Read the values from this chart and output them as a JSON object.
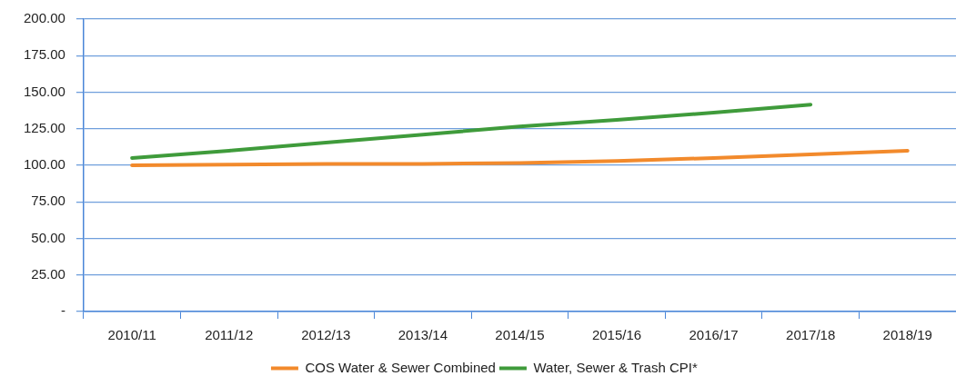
{
  "chart_data": {
    "type": "line",
    "categories": [
      "2010/11",
      "2011/12",
      "2012/13",
      "2013/14",
      "2014/15",
      "2015/16",
      "2016/17",
      "2017/18",
      "2018/19"
    ],
    "series": [
      {
        "name": "COS Water & Sewer Combined",
        "color": "#f28a2c",
        "values": [
          100,
          100.5,
          101,
          101,
          101.5,
          103,
          105,
          107.5,
          110
        ]
      },
      {
        "name": "Water, Sewer & Trash CPI*",
        "color": "#3f9b3b",
        "values": [
          105,
          110,
          115.5,
          121,
          126.5,
          131,
          136,
          141.5,
          null
        ]
      }
    ],
    "ylim": [
      0,
      200
    ],
    "yticks": [
      {
        "value": 0,
        "label": "-"
      },
      {
        "value": 25,
        "label": "25.00"
      },
      {
        "value": 50,
        "label": "50.00"
      },
      {
        "value": 75,
        "label": "75.00"
      },
      {
        "value": 100,
        "label": "100.00"
      },
      {
        "value": 125,
        "label": "125.00"
      },
      {
        "value": 150,
        "label": "150.00"
      },
      {
        "value": 175,
        "label": "175.00"
      },
      {
        "value": 200,
        "label": "200.00"
      }
    ],
    "grid": "y",
    "legend": "bottom",
    "marker": "none",
    "line_style": "solid"
  }
}
